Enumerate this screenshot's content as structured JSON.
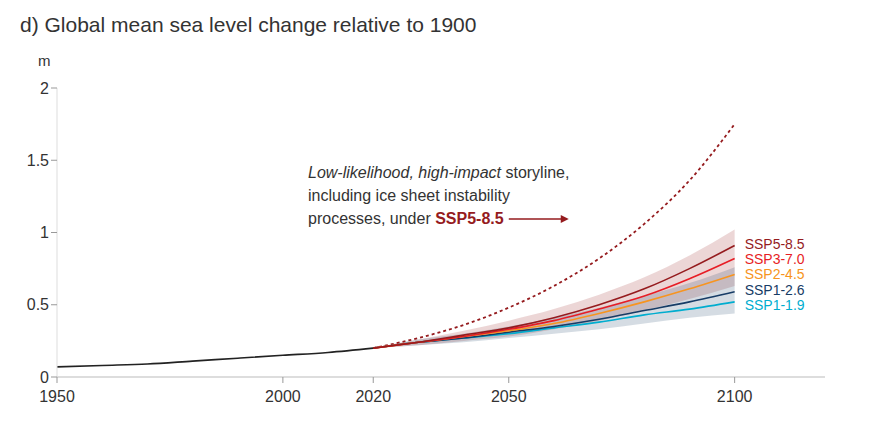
{
  "chart_data": {
    "type": "line",
    "title": "d) Global mean sea level change relative to 1900",
    "y_label": "m",
    "x": [
      1950,
      1960,
      1970,
      1980,
      1990,
      2000,
      2010,
      2020,
      2030,
      2040,
      2050,
      2060,
      2070,
      2080,
      2090,
      2100
    ],
    "xlim": [
      1950,
      2120
    ],
    "xticks": [
      1950,
      2000,
      2020,
      2050,
      2100
    ],
    "ylim": [
      0,
      2
    ],
    "yticks": [
      0,
      0.5,
      1,
      1.5,
      2
    ],
    "grid": false,
    "series": [
      {
        "color": "#222222",
        "values": [
          0.07,
          0.08,
          0.09,
          0.11,
          0.13,
          0.15,
          0.17,
          0.2,
          null,
          null,
          null,
          null,
          null,
          null,
          null,
          null
        ]
      },
      {
        "name": "SSP5-8.5",
        "color": "#951b1e",
        "values": [
          null,
          null,
          null,
          null,
          null,
          null,
          null,
          0.2,
          0.24,
          0.29,
          0.34,
          0.41,
          0.5,
          0.61,
          0.75,
          0.91
        ],
        "low": [
          null,
          null,
          null,
          null,
          null,
          null,
          null,
          0.2,
          0.22,
          0.25,
          0.28,
          0.33,
          0.39,
          0.46,
          0.54,
          0.63
        ],
        "high": [
          null,
          null,
          null,
          null,
          null,
          null,
          null,
          0.2,
          0.26,
          0.32,
          0.39,
          0.47,
          0.57,
          0.69,
          0.84,
          1.02
        ]
      },
      {
        "name": "SSP3-7.0",
        "color": "#e71d25",
        "values": [
          null,
          null,
          null,
          null,
          null,
          null,
          null,
          0.2,
          0.24,
          0.28,
          0.33,
          0.39,
          0.47,
          0.56,
          0.68,
          0.82
        ]
      },
      {
        "name": "SSP2-4.5",
        "color": "#f79420",
        "values": [
          null,
          null,
          null,
          null,
          null,
          null,
          null,
          0.2,
          0.24,
          0.28,
          0.32,
          0.37,
          0.44,
          0.52,
          0.61,
          0.71
        ]
      },
      {
        "name": "SSP1-2.6",
        "color": "#173c66",
        "values": [
          null,
          null,
          null,
          null,
          null,
          null,
          null,
          0.2,
          0.24,
          0.27,
          0.31,
          0.35,
          0.4,
          0.46,
          0.52,
          0.59
        ],
        "low": [
          null,
          null,
          null,
          null,
          null,
          null,
          null,
          0.2,
          0.22,
          0.24,
          0.27,
          0.3,
          0.33,
          0.37,
          0.41,
          0.44
        ],
        "high": [
          null,
          null,
          null,
          null,
          null,
          null,
          null,
          0.2,
          0.26,
          0.3,
          0.35,
          0.41,
          0.48,
          0.56,
          0.65,
          0.76
        ]
      },
      {
        "name": "SSP1-1.9",
        "color": "#00adcf",
        "values": [
          null,
          null,
          null,
          null,
          null,
          null,
          null,
          0.2,
          0.24,
          0.27,
          0.3,
          0.34,
          0.38,
          0.43,
          0.47,
          0.52
        ]
      },
      {
        "name": "SSP5-8.5",
        "color": "#951b1e",
        "line_style": "dashed",
        "values": [
          null,
          null,
          null,
          null,
          null,
          null,
          null,
          0.2,
          0.27,
          0.36,
          0.48,
          0.63,
          0.82,
          1.06,
          1.36,
          1.75
        ]
      }
    ],
    "annotation": {
      "emphasis": "Low-likelihood, high-impact",
      "lines": [
        "storyline,",
        "including ice sheet instability",
        "processes, under"
      ]
    }
  }
}
